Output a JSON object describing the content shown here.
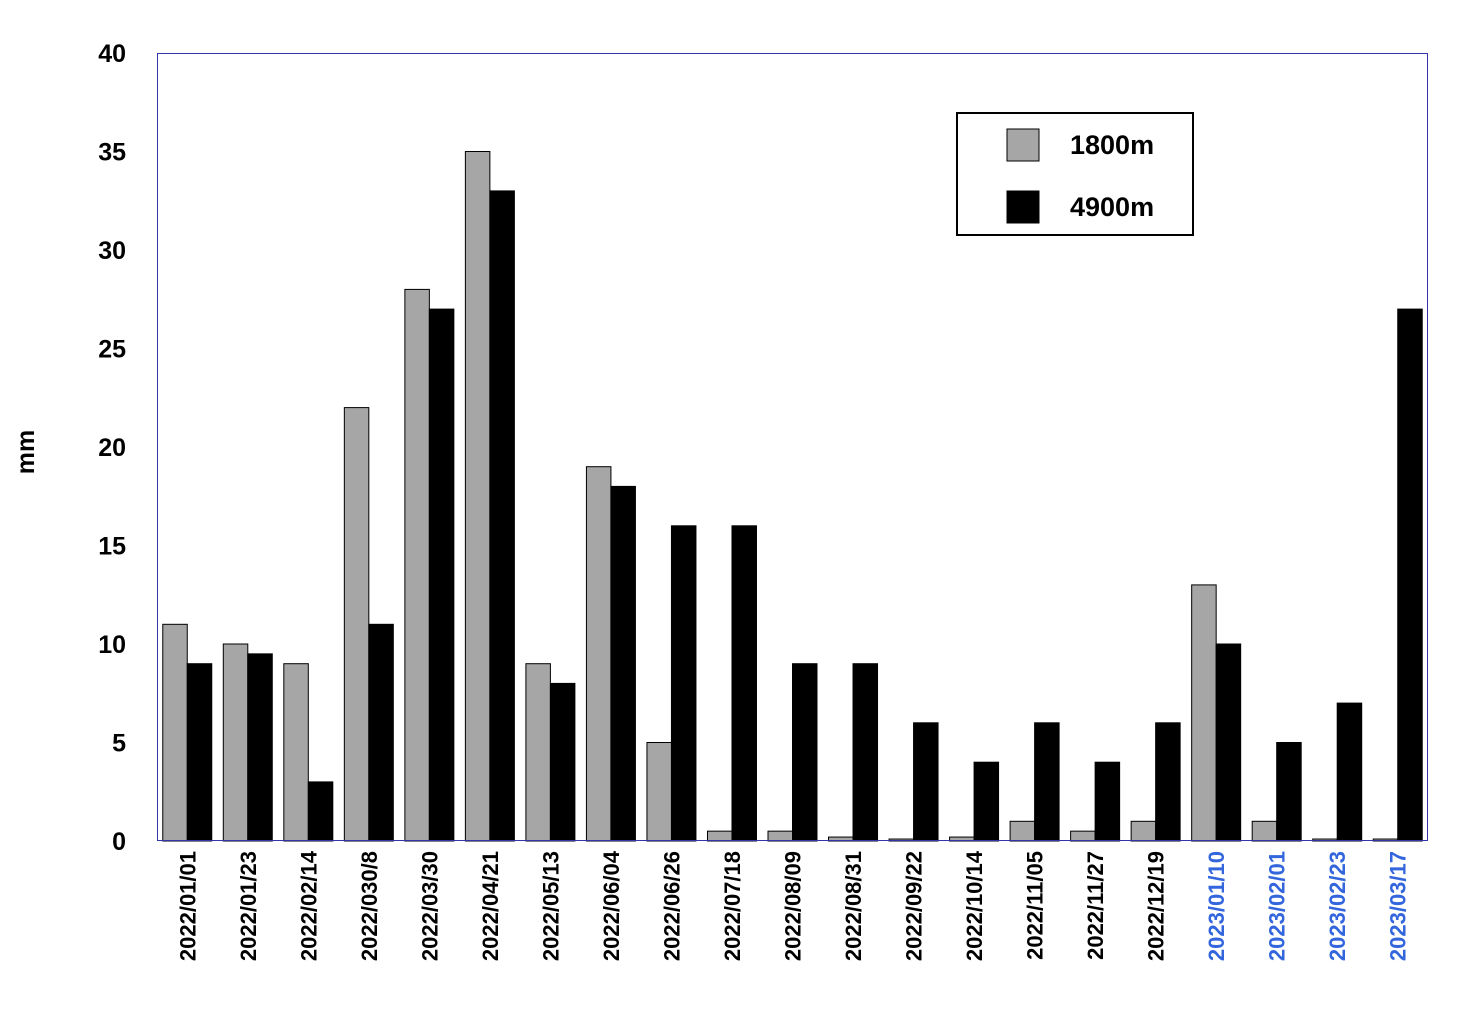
{
  "chart_data": {
    "type": "bar",
    "title": "",
    "xlabel": "",
    "ylabel": "mm",
    "ylim": [
      0,
      40
    ],
    "yticks": [
      "0",
      "5",
      "10",
      "15",
      "20",
      "25",
      "30",
      "35",
      "40"
    ],
    "grid": false,
    "legend_position": "top-right",
    "categories": [
      "2022/01/01",
      "2022/01/23",
      "2022/02/14",
      "2022/030/8",
      "2022/03/30",
      "2022/04/21",
      "2022/05/13",
      "2022/06/04",
      "2022/06/26",
      "2022/07/18",
      "2022/08/09",
      "2022/08/31",
      "2022/09/22",
      "2022/10/14",
      "2022/11/05",
      "2022/11/27",
      "2022/12/19",
      "2023/01/10",
      "2023/02/01",
      "2023/02/23",
      "2023/03/17"
    ],
    "category_colors": [
      "#000000",
      "#000000",
      "#000000",
      "#000000",
      "#000000",
      "#000000",
      "#000000",
      "#000000",
      "#000000",
      "#000000",
      "#000000",
      "#000000",
      "#000000",
      "#000000",
      "#000000",
      "#000000",
      "#000000",
      "#3366dd",
      "#3366dd",
      "#3366dd",
      "#3366dd"
    ],
    "series": [
      {
        "name": "1800m",
        "color": "#a6a6a6",
        "values": [
          11,
          10,
          9,
          22,
          28,
          35,
          9,
          19,
          5,
          0.5,
          0.5,
          0.2,
          0.1,
          0.2,
          1,
          0.5,
          1,
          13,
          1,
          0.1,
          0.1
        ]
      },
      {
        "name": "4900m",
        "color": "#000000",
        "values": [
          9,
          9.5,
          3,
          11,
          27,
          33,
          8,
          18,
          16,
          16,
          9,
          9,
          6,
          4,
          6,
          4,
          6,
          10,
          5,
          7,
          27
        ]
      }
    ],
    "plot_border_color": "#3333aa"
  }
}
